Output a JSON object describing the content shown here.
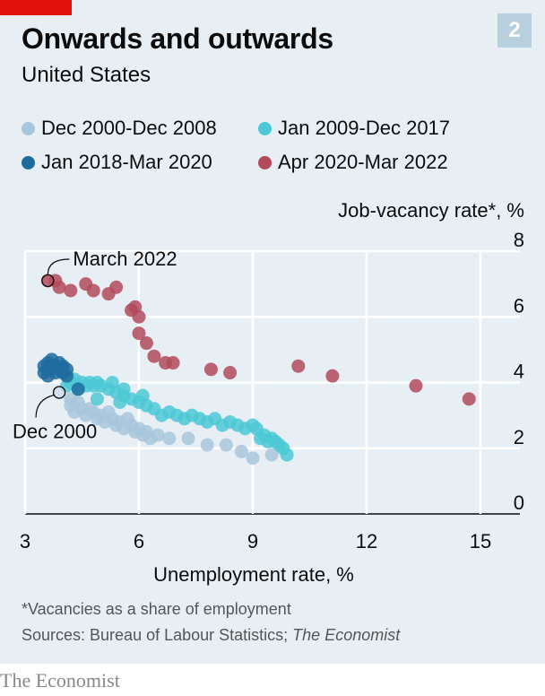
{
  "header": {
    "title": "Onwards and outwards",
    "subtitle": "United States",
    "badge": "2"
  },
  "footnotes": {
    "note": "*Vacancies as a share of employment",
    "sources_prefix": "Sources: Bureau of Labour Statistics; ",
    "sources_italic": "The Economist"
  },
  "brand": "The Economist",
  "colors": {
    "brand_red": "#e3120b",
    "background": "#e7eff5",
    "series_1": "#a8c6dc",
    "series_2": "#4cc8d6",
    "series_3": "#1e6b9e",
    "series_4": "#b24a5c"
  },
  "chart_data": {
    "type": "scatter",
    "title": "Onwards and outwards",
    "subtitle": "United States",
    "xlabel": "Unemployment rate, %",
    "ylabel": "Job-vacancy rate*, %",
    "xlim": [
      3,
      16
    ],
    "ylim": [
      0,
      8
    ],
    "xticks": [
      3,
      6,
      9,
      12,
      15
    ],
    "yticks": [
      0,
      2,
      4,
      6,
      8
    ],
    "grid": true,
    "legend_position": "top",
    "annotations": [
      {
        "text": "March 2022",
        "x": 3.6,
        "y": 7.1
      },
      {
        "text": "Dec 2000",
        "x": 3.9,
        "y": 3.7
      }
    ],
    "series": [
      {
        "name": "Dec 2000-Dec 2008",
        "color": "#a8c6dc",
        "points": [
          [
            3.9,
            3.7
          ],
          [
            4.2,
            3.5
          ],
          [
            4.2,
            3.3
          ],
          [
            4.3,
            3.1
          ],
          [
            4.4,
            3.4
          ],
          [
            4.5,
            3.2
          ],
          [
            4.6,
            3.0
          ],
          [
            4.7,
            3.2
          ],
          [
            4.8,
            3.1
          ],
          [
            4.9,
            2.9
          ],
          [
            5.0,
            3.0
          ],
          [
            5.1,
            2.8
          ],
          [
            5.2,
            3.1
          ],
          [
            5.3,
            2.9
          ],
          [
            5.4,
            2.7
          ],
          [
            5.5,
            2.8
          ],
          [
            5.6,
            2.6
          ],
          [
            5.7,
            2.9
          ],
          [
            5.8,
            2.7
          ],
          [
            5.9,
            2.5
          ],
          [
            6.0,
            2.6
          ],
          [
            6.1,
            2.4
          ],
          [
            6.2,
            2.5
          ],
          [
            6.3,
            2.3
          ],
          [
            6.5,
            2.4
          ],
          [
            6.8,
            2.3
          ],
          [
            7.3,
            2.3
          ],
          [
            7.8,
            2.1
          ],
          [
            8.3,
            2.1
          ],
          [
            8.7,
            1.9
          ],
          [
            9.0,
            1.7
          ],
          [
            9.5,
            1.8
          ]
        ]
      },
      {
        "name": "Jan 2009-Dec 2017",
        "color": "#4cc8d6",
        "points": [
          [
            9.9,
            1.8
          ],
          [
            9.8,
            2.0
          ],
          [
            9.7,
            2.1
          ],
          [
            9.6,
            2.2
          ],
          [
            9.5,
            2.3
          ],
          [
            9.4,
            2.2
          ],
          [
            9.3,
            2.4
          ],
          [
            9.2,
            2.3
          ],
          [
            9.1,
            2.6
          ],
          [
            9.0,
            2.7
          ],
          [
            8.8,
            2.6
          ],
          [
            8.6,
            2.7
          ],
          [
            8.4,
            2.8
          ],
          [
            8.2,
            2.7
          ],
          [
            8.0,
            2.9
          ],
          [
            7.8,
            2.8
          ],
          [
            7.6,
            2.9
          ],
          [
            7.4,
            3.0
          ],
          [
            7.2,
            2.9
          ],
          [
            7.0,
            3.0
          ],
          [
            6.8,
            3.1
          ],
          [
            6.6,
            3.0
          ],
          [
            6.4,
            3.2
          ],
          [
            6.2,
            3.3
          ],
          [
            6.0,
            3.4
          ],
          [
            5.8,
            3.5
          ],
          [
            5.6,
            3.6
          ],
          [
            5.4,
            3.7
          ],
          [
            5.2,
            3.8
          ],
          [
            5.0,
            3.9
          ],
          [
            4.9,
            4.0
          ],
          [
            4.8,
            3.9
          ],
          [
            4.7,
            4.0
          ],
          [
            4.6,
            3.9
          ],
          [
            4.5,
            4.0
          ],
          [
            4.4,
            3.8
          ],
          [
            4.3,
            4.1
          ],
          [
            4.2,
            4.0
          ],
          [
            4.1,
            3.9
          ],
          [
            4.1,
            4.2
          ],
          [
            5.3,
            4.0
          ],
          [
            5.6,
            3.8
          ],
          [
            6.1,
            3.6
          ],
          [
            4.9,
            3.5
          ],
          [
            5.5,
            3.4
          ]
        ]
      },
      {
        "name": "Jan 2018-Mar 2020",
        "color": "#1e6b9e",
        "points": [
          [
            3.5,
            4.5
          ],
          [
            3.5,
            4.3
          ],
          [
            3.6,
            4.6
          ],
          [
            3.6,
            4.4
          ],
          [
            3.7,
            4.5
          ],
          [
            3.7,
            4.7
          ],
          [
            3.8,
            4.5
          ],
          [
            3.8,
            4.3
          ],
          [
            3.9,
            4.6
          ],
          [
            3.9,
            4.4
          ],
          [
            4.0,
            4.5
          ],
          [
            4.0,
            4.3
          ],
          [
            4.1,
            4.4
          ],
          [
            4.1,
            4.2
          ],
          [
            3.6,
            4.2
          ],
          [
            4.4,
            3.8
          ]
        ]
      },
      {
        "name": "Apr 2020-Mar 2022",
        "color": "#b24a5c",
        "points": [
          [
            14.7,
            3.5
          ],
          [
            13.3,
            3.9
          ],
          [
            11.1,
            4.2
          ],
          [
            10.2,
            4.5
          ],
          [
            8.4,
            4.3
          ],
          [
            7.9,
            4.4
          ],
          [
            6.9,
            4.6
          ],
          [
            6.7,
            4.6
          ],
          [
            6.4,
            4.8
          ],
          [
            6.2,
            5.2
          ],
          [
            6.0,
            5.5
          ],
          [
            6.0,
            6.0
          ],
          [
            5.9,
            6.3
          ],
          [
            5.8,
            6.2
          ],
          [
            5.4,
            6.9
          ],
          [
            5.2,
            6.7
          ],
          [
            4.8,
            6.8
          ],
          [
            4.6,
            7.0
          ],
          [
            4.2,
            6.8
          ],
          [
            3.9,
            6.9
          ],
          [
            3.8,
            7.1
          ],
          [
            3.6,
            7.1
          ]
        ]
      }
    ]
  }
}
